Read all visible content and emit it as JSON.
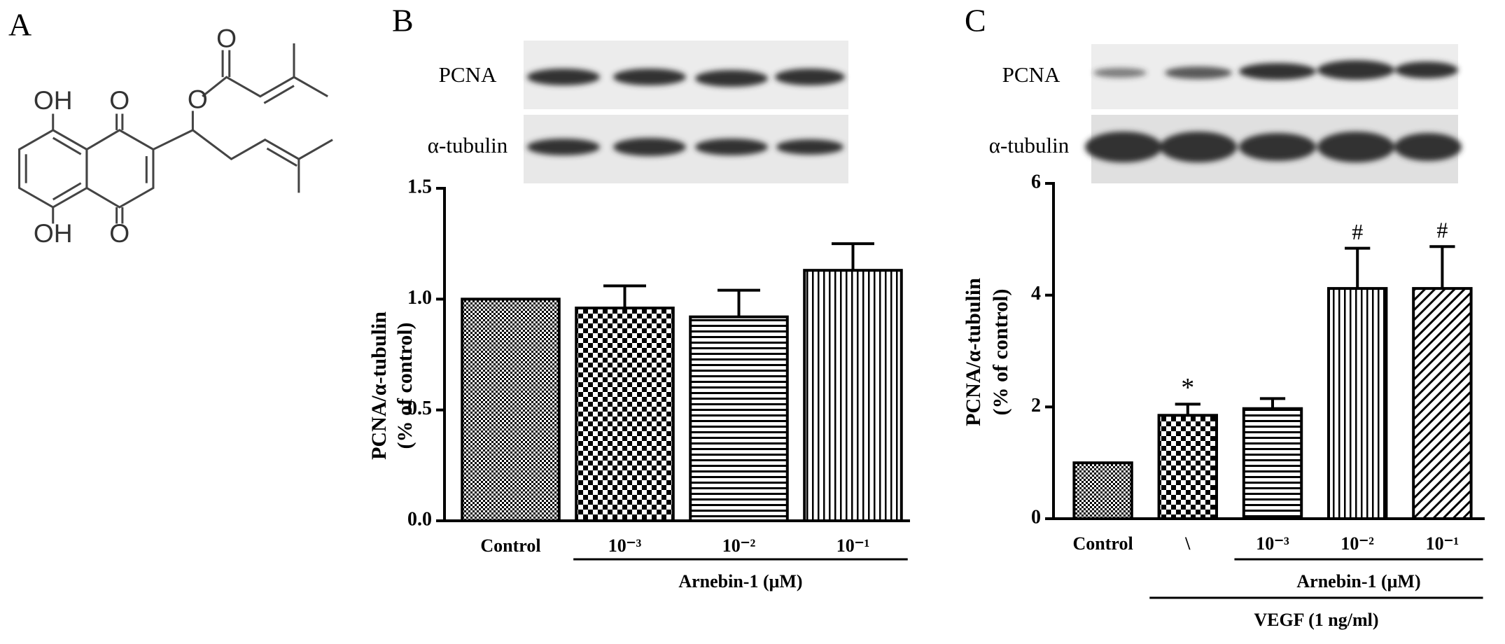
{
  "panel_labels": [
    "A",
    "B",
    "C"
  ],
  "structure_labels": [
    "OH",
    "OH",
    "O",
    "O",
    "O",
    "O"
  ],
  "blots": [
    {
      "labels": [
        "PCNA",
        "α-tubulin"
      ]
    },
    {
      "labels": [
        "PCNA",
        "α-tubulin"
      ]
    }
  ],
  "chart_data": [
    {
      "type": "bar",
      "categories": [
        "Control",
        "10⁻³",
        "10⁻²",
        "10⁻¹"
      ],
      "values": [
        1.0,
        0.96,
        0.92,
        1.13
      ],
      "errors": [
        0,
        0.1,
        0.12,
        0.12
      ],
      "patterns": [
        "fine-check",
        "check",
        "hlines",
        "vlines"
      ],
      "color": "#000000",
      "y_label": [
        "PCNA/α-tubulin",
        "(% of control)"
      ],
      "ylim": [
        0,
        1.5
      ],
      "yticks": [
        {
          "value": 0,
          "label": "0.0"
        },
        {
          "value": 0.5,
          "label": "0.5"
        },
        {
          "value": 1,
          "label": "1.0"
        },
        {
          "value": 1.5,
          "label": "1.5"
        }
      ],
      "groups": [
        {
          "label": "Arnebin-1 (μM)"
        }
      ]
    },
    {
      "type": "bar",
      "categories": [
        "Control",
        "\\",
        "10⁻³",
        "10⁻²",
        "10⁻¹"
      ],
      "values": [
        1.0,
        1.85,
        1.97,
        4.12,
        4.12
      ],
      "errors": [
        0,
        0.2,
        0.18,
        0.72,
        0.75
      ],
      "bar_labels": [
        null,
        "*",
        null,
        "#",
        "#"
      ],
      "patterns": [
        "fine-check",
        "check",
        "hlines",
        "vlines",
        "diag"
      ],
      "color": "#000000",
      "y_label": [
        "PCNA/α-tubulin",
        "(% of control)"
      ],
      "ylim": [
        0,
        6
      ],
      "yticks": [
        0,
        2,
        4,
        6
      ],
      "groups": [
        {
          "label": "Arnebin-1 (μM)"
        },
        {
          "label": "VEGF (1 ng/ml)"
        }
      ]
    }
  ]
}
